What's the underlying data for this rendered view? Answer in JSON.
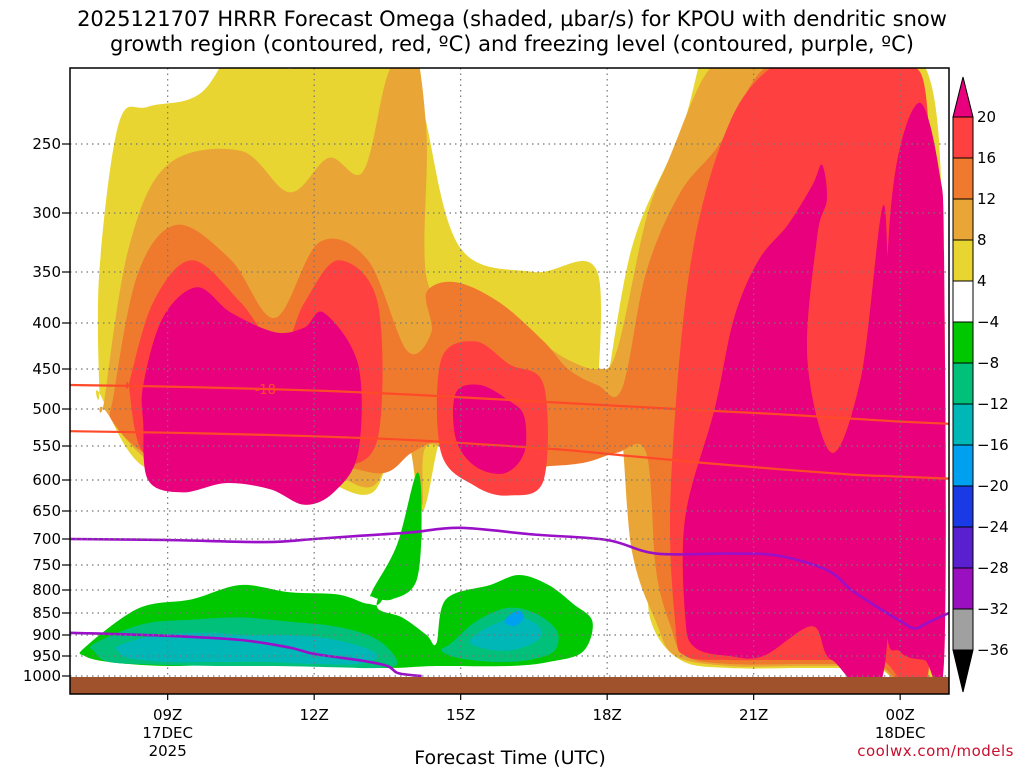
{
  "title_lines": [
    "2025121707 HRRR Forecast Omega (shaded, µbar/s) for KPOU with dendritic snow",
    "growth region (contoured, red, ºC) and freezing level (contoured, purple, ºC)"
  ],
  "credit": "coolwx.com/models",
  "colors": {
    "ground": "#a0522d",
    "dgz_contour": "#ff4a2a",
    "freezing_contour": "#9a10c8",
    "grid": "#777777"
  },
  "chart_data": {
    "type": "heatmap",
    "title": "2025121707 HRRR Forecast Omega (shaded, µbar/s) for KPOU with dendritic snow growth region (contoured, red, ºC) and freezing level (contoured, purple, ºC)",
    "xlabel": "Forecast Time (UTC)",
    "ylabel": "",
    "x_range_hours_utc": [
      7,
      25
    ],
    "y_axis": "pressure (hPa)",
    "y_ticks": [
      250,
      300,
      350,
      400,
      450,
      500,
      550,
      600,
      650,
      700,
      750,
      800,
      850,
      900,
      950,
      1000
    ],
    "x_ticks": [
      {
        "hour": 9,
        "label": "09Z",
        "sub1": "17DEC",
        "sub2": "2025"
      },
      {
        "hour": 12,
        "label": "12Z",
        "sub1": "",
        "sub2": ""
      },
      {
        "hour": 15,
        "label": "15Z",
        "sub1": "",
        "sub2": ""
      },
      {
        "hour": 18,
        "label": "18Z",
        "sub1": "",
        "sub2": ""
      },
      {
        "hour": 21,
        "label": "21Z",
        "sub1": "",
        "sub2": ""
      },
      {
        "hour": 24,
        "label": "00Z",
        "sub1": "18DEC",
        "sub2": ""
      }
    ],
    "grid": true,
    "colorbar": {
      "placement": "right",
      "labels": [
        "20",
        "16",
        "12",
        "8",
        "4",
        "−4",
        "−8",
        "−12",
        "−16",
        "−20",
        "−24",
        "−28",
        "−32",
        "−36"
      ],
      "colors": [
        "#e8007c",
        "#ff4040",
        "#ef7a2e",
        "#e9a636",
        "#e8d531",
        "#ffffff",
        "#00c800",
        "#00c07a",
        "#00b7b7",
        "#00a0f0",
        "#1a3ae6",
        "#5a20d0",
        "#9a10c0",
        "#a0a0a0",
        "#000000"
      ]
    },
    "omega_regions": [
      {
        "level": 4,
        "color": "#e8d531",
        "t": [
          7.6,
          7.6,
          8,
          8.6,
          9.7,
          10.7,
          11.5,
          12.5,
          13.4,
          13.9,
          14.3,
          15,
          16.5,
          17.8,
          17.8,
          18.5,
          19.5,
          20,
          20.5,
          21.5,
          22.5,
          23.5,
          24,
          24.8,
          24.8,
          23.5,
          22,
          20.5,
          19.5,
          18.9,
          18.8,
          18.4,
          18.1,
          17.5,
          16.2,
          15,
          14.6,
          14.2,
          13.8,
          13.2,
          11.8,
          10.2,
          8.5,
          7.6
        ],
        "p": [
          480,
          350,
          240,
          232,
          225,
          175,
          210,
          176,
          180,
          160,
          240,
          330,
          350,
          350,
          530,
          330,
          245,
          195,
          190,
          190,
          190,
          190,
          190,
          250,
          980,
          980,
          980,
          980,
          960,
          870,
          730,
          450,
          530,
          560,
          590,
          580,
          540,
          650,
          500,
          620,
          590,
          590,
          580,
          480
        ]
      },
      {
        "level": 8,
        "color": "#e9a636",
        "t": [
          7.7,
          8.2,
          9,
          10.5,
          11.5,
          12.3,
          13,
          13.5,
          14,
          14.3,
          14.3,
          15,
          16,
          16.6,
          17.2,
          17.8,
          18.2,
          18.8,
          19.3,
          20,
          20.6,
          21.5,
          22.5,
          23.3,
          24,
          24.6,
          24.6,
          23.5,
          22,
          20.5,
          19.4,
          19,
          18.5,
          18.2,
          17.5,
          16.5,
          15.2,
          14.3,
          14.2,
          13.8,
          13.2,
          12,
          10.3,
          8.7,
          7.7
        ],
        "p": [
          490,
          330,
          265,
          255,
          285,
          260,
          270,
          215,
          185,
          245,
          355,
          390,
          405,
          420,
          440,
          450,
          430,
          305,
          258,
          215,
          200,
          200,
          200,
          200,
          210,
          260,
          975,
          975,
          975,
          975,
          950,
          870,
          720,
          500,
          545,
          565,
          570,
          550,
          640,
          520,
          610,
          580,
          585,
          575,
          500
        ]
      },
      {
        "level": 12,
        "color": "#ef7a2e",
        "t": [
          7.9,
          8.4,
          9.2,
          10.3,
          11.2,
          12.1,
          13.1,
          13.9,
          14.4,
          14.3,
          14.9,
          15.8,
          16.7,
          17.2,
          17.8,
          18.3,
          18.8,
          19.5,
          20.3,
          21.2,
          22.3,
          23.2,
          24.1,
          24.6,
          24.6,
          23.5,
          22,
          20.5,
          19.6,
          19.3,
          19,
          18.8,
          18.2,
          17.5,
          16.5,
          15.5,
          14.6,
          14,
          13.4,
          12.2,
          10.4,
          8.8,
          7.9
        ],
        "p": [
          480,
          350,
          310,
          340,
          395,
          325,
          340,
          430,
          410,
          370,
          360,
          380,
          420,
          450,
          470,
          475,
          350,
          285,
          250,
          210,
          205,
          205,
          205,
          270,
          970,
          970,
          970,
          970,
          950,
          880,
          760,
          560,
          560,
          575,
          580,
          575,
          545,
          560,
          590,
          575,
          580,
          570,
          520
        ]
      },
      {
        "level": 16,
        "color": "#ff4040",
        "t": [
          8.2,
          8.7,
          9.5,
          10.5,
          11.3,
          11.8,
          12.5,
          13.3,
          13.3,
          12.5,
          11.5,
          10.5,
          9.5,
          8.5,
          8.2
        ],
        "p": [
          470,
          380,
          340,
          380,
          430,
          380,
          340,
          380,
          540,
          580,
          560,
          570,
          580,
          560,
          470
        ]
      },
      {
        "level": 16,
        "color": "#ff4040",
        "t": [
          14.6,
          15.3,
          16,
          16.7,
          16.7,
          16,
          15.3,
          14.6
        ],
        "p": [
          440,
          420,
          445,
          470,
          600,
          625,
          610,
          560
        ]
      },
      {
        "level": 16,
        "color": "#ff4040",
        "t": [
          19.3,
          19.7,
          20.5,
          21.5,
          22.5,
          23.3,
          24.1,
          24.6,
          24.6,
          23.6,
          22.5,
          21.3,
          20.5,
          19.6,
          19.4
        ],
        "p": [
          620,
          345,
          240,
          205,
          200,
          200,
          205,
          250,
          960,
          960,
          960,
          960,
          960,
          950,
          880
        ]
      },
      {
        "level": 20,
        "color": "#e8007c",
        "t": [
          8.5,
          8.9,
          9.6,
          10.3,
          11.2,
          11.8,
          12.2,
          12.9,
          12.9,
          12.4,
          11.8,
          11.1,
          10.2,
          9.3,
          8.6,
          8.5
        ],
        "p": [
          470,
          395,
          365,
          390,
          410,
          405,
          390,
          445,
          560,
          620,
          640,
          615,
          605,
          620,
          600,
          520
        ]
      },
      {
        "level": 20,
        "color": "#e8007c",
        "t": [
          14.9,
          15.4,
          16,
          16.3,
          16.3,
          15.9,
          15.3,
          14.9
        ],
        "p": [
          480,
          470,
          490,
          510,
          560,
          590,
          580,
          540
        ]
      },
      {
        "level": 20,
        "color": "#e8007c",
        "t": [
          19.6,
          20.2,
          20.6,
          21.1,
          21.7,
          22.2,
          22.4,
          22.5,
          22.3,
          22.1,
          22.6,
          23.2,
          23.7,
          23.7,
          22.6,
          22.2,
          21.2,
          20.5,
          19.8,
          19.6
        ],
        "p": [
          660,
          500,
          395,
          340,
          310,
          280,
          265,
          290,
          320,
          440,
          560,
          460,
          300,
          960,
          960,
          880,
          950,
          950,
          930,
          860
        ]
      },
      {
        "level": 20,
        "color": "#e8007c",
        "t": [
          23.9,
          24.4,
          24.8,
          24.9,
          24.9,
          24.5,
          24.0,
          23.7,
          23.7
        ],
        "p": [
          270,
          230,
          270,
          340,
          960,
          960,
          940,
          850,
          400
        ]
      },
      {
        "level": -4,
        "color": "#00c800",
        "t": [
          7.3,
          8.4,
          9.5,
          10.5,
          11.5,
          12.5,
          13.1,
          13.4,
          13.7,
          14.1,
          14.2,
          14,
          13.7,
          13.4,
          13.3,
          13.8,
          14.3,
          14.5,
          14.7,
          15.6,
          16.2,
          16.8,
          17.3,
          17.7,
          17.5,
          16.8,
          16,
          14.5,
          13.5,
          12,
          10.5,
          9,
          7.8,
          7.3
        ],
        "p": [
          930,
          840,
          820,
          790,
          805,
          810,
          830,
          820,
          720,
          650,
          700,
          720,
          770,
          800,
          840,
          860,
          900,
          920,
          820,
          790,
          770,
          790,
          830,
          870,
          940,
          965,
          975,
          975,
          980,
          975,
          970,
          975,
          965,
          950
        ]
      },
      {
        "level": -4,
        "color": "#00c800",
        "t": [
          13.2,
          13.7,
          14.1,
          14.2,
          14.1,
          13.6,
          13.2
        ],
        "p": [
          800,
          710,
          590,
          650,
          780,
          820,
          815
        ]
      },
      {
        "level": -8,
        "color": "#00c07a",
        "t": [
          7.5,
          8.5,
          9.5,
          10.5,
          11.5,
          12.4,
          13.1,
          13.5,
          13.7,
          13.3,
          12.4,
          11.2,
          10,
          8.8,
          7.8,
          7.5
        ],
        "p": [
          920,
          875,
          865,
          860,
          870,
          880,
          900,
          930,
          970,
          980,
          978,
          975,
          975,
          972,
          965,
          940
        ]
      },
      {
        "level": -8,
        "color": "#00c07a",
        "t": [
          14.8,
          15.3,
          15.9,
          16.4,
          16.8,
          17,
          16.9,
          16.4,
          15.8,
          15.2,
          14.8,
          14.6
        ],
        "p": [
          920,
          870,
          840,
          845,
          870,
          900,
          940,
          960,
          965,
          960,
          950,
          935
        ]
      },
      {
        "level": -12,
        "color": "#00b7b7",
        "t": [
          8,
          8.8,
          9.8,
          10.6,
          11.3,
          12.1,
          12.9,
          13.3,
          12.9,
          12,
          11,
          10,
          9,
          8.2,
          8
        ],
        "p": [
          925,
          900,
          895,
          900,
          900,
          905,
          925,
          950,
          970,
          970,
          965,
          965,
          965,
          955,
          940
        ]
      },
      {
        "level": -12,
        "color": "#00b7b7",
        "t": [
          15.3,
          15.7,
          16.2,
          16.6,
          16.6,
          16.1,
          15.6,
          15.2
        ],
        "p": [
          900,
          875,
          860,
          880,
          910,
          935,
          935,
          920
        ]
      },
      {
        "level": -16,
        "color": "#00a0f0",
        "t": [
          16.0,
          16.2,
          16.3,
          16.1,
          15.9
        ],
        "p": [
          855,
          845,
          860,
          880,
          870
        ]
      }
    ],
    "dgz_contours": [
      {
        "label": "-18",
        "label_hour": 11.0,
        "t": [
          7,
          9,
          11,
          12.5,
          14,
          15.5,
          17,
          18.5,
          20,
          21.5,
          23,
          24,
          25
        ],
        "p": [
          470,
          472,
          475,
          478,
          482,
          487,
          492,
          497,
          502,
          507,
          513,
          517,
          520
        ]
      },
      {
        "label": "",
        "t": [
          7,
          9,
          11,
          12.5,
          14,
          15.5,
          17,
          18.5,
          20,
          21.5,
          23,
          24,
          25
        ],
        "p": [
          530,
          532,
          535,
          538,
          542,
          548,
          555,
          565,
          575,
          584,
          592,
          595,
          598
        ]
      }
    ],
    "freezing_contours": [
      {
        "label": "",
        "t": [
          7,
          9,
          11,
          12,
          13,
          14,
          15,
          16.5,
          18,
          19,
          20.5,
          21.5,
          22.5,
          23,
          23.5,
          24.0,
          24.3,
          24.6,
          25
        ],
        "p": [
          700,
          702,
          706,
          700,
          694,
          688,
          680,
          692,
          702,
          728,
          728,
          732,
          760,
          800,
          835,
          868,
          885,
          870,
          850
        ]
      },
      {
        "label": "",
        "t": [
          7,
          9,
          10.5,
          11.5,
          12,
          13,
          13.5,
          13.7,
          14.0,
          14.2
        ],
        "p": [
          895,
          902,
          912,
          930,
          945,
          962,
          975,
          992,
          998,
          1000
        ]
      }
    ]
  }
}
